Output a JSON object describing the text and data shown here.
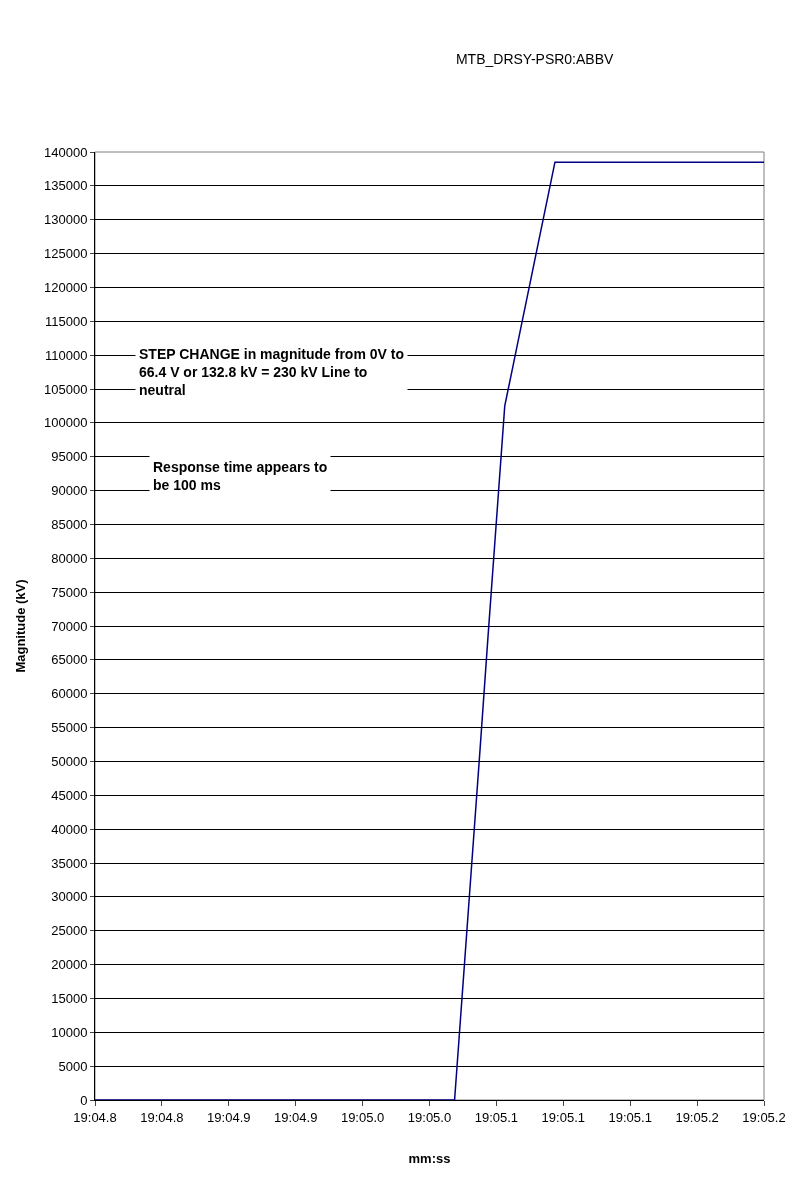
{
  "chart_data": {
    "type": "line",
    "title": "MTB_DRSY-PSR0:ABBV",
    "xlabel": "mm:ss",
    "ylabel": "Magnitude (kV)",
    "categories": [
      "19:04.8",
      null,
      null,
      null,
      null,
      null,
      null,
      null,
      "19:04.8",
      null,
      null,
      null,
      null,
      null,
      null,
      null,
      "19:04.9",
      null,
      null,
      null,
      null,
      null,
      null,
      null,
      "19:04.9",
      null,
      null,
      null,
      null,
      null,
      null,
      null,
      "19:05.0",
      null,
      null,
      null,
      null,
      null,
      null,
      null,
      "19:05.0",
      null,
      null,
      null,
      null,
      null,
      null,
      null,
      "19:05.1",
      null,
      null,
      null,
      null,
      null,
      null,
      null,
      "19:05.1",
      null,
      null,
      null,
      null,
      null,
      null,
      null,
      "19:05.1",
      null,
      null,
      null,
      null,
      null,
      null,
      null,
      "19:05.2",
      null,
      null,
      null,
      null,
      null,
      null,
      null,
      "19:05.2"
    ],
    "series": [
      {
        "color": "#000080",
        "values": [
          0,
          0,
          0,
          0,
          0,
          0,
          0,
          0,
          0,
          0,
          0,
          0,
          0,
          0,
          0,
          0,
          0,
          0,
          0,
          0,
          0,
          0,
          0,
          0,
          0,
          0,
          0,
          0,
          0,
          0,
          0,
          0,
          0,
          0,
          0,
          0,
          0,
          0,
          0,
          0,
          0,
          0,
          0,
          0,
          17000,
          34000,
          51000,
          68500,
          85500,
          102500,
          108500,
          114500,
          120500,
          126500,
          132500,
          138500,
          138500,
          138500,
          138500,
          138500,
          138500,
          138500,
          138500,
          138500,
          138500,
          138500,
          138500,
          138500,
          138500,
          138500,
          138500,
          138500,
          138500,
          138500,
          138500,
          138500,
          138500,
          138500,
          138500,
          138500,
          138500
        ]
      }
    ],
    "ylim": [
      0,
      140000
    ],
    "yticks": [
      0,
      5000,
      10000,
      15000,
      20000,
      25000,
      30000,
      35000,
      40000,
      45000,
      50000,
      55000,
      60000,
      65000,
      70000,
      75000,
      80000,
      85000,
      90000,
      95000,
      100000,
      105000,
      110000,
      115000,
      120000,
      125000,
      130000,
      135000,
      140000
    ],
    "grid": "y",
    "marker": "none",
    "line_style": "solid",
    "annotations": [
      "STEP CHANGE in magnitude from 0V to\n66.4 V or 132.8 kV = 230 kV Line to\nneutral",
      "Response time appears to\nbe 100 ms"
    ]
  }
}
